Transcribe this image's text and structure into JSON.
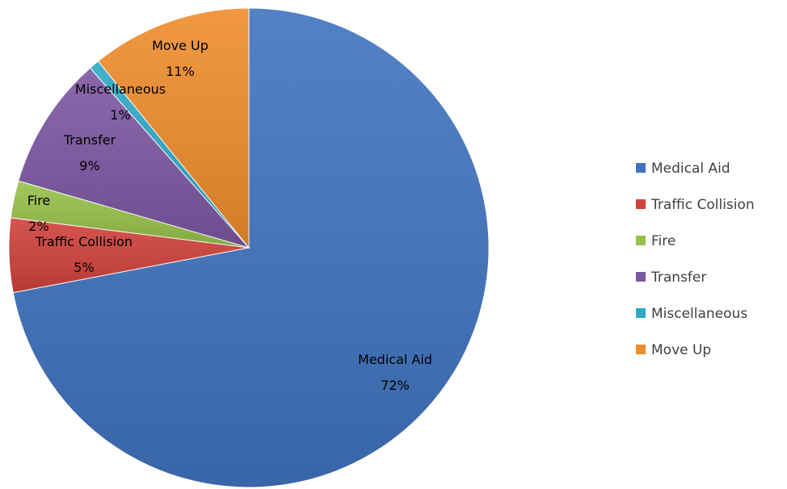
{
  "chart_data": {
    "type": "pie",
    "title": "",
    "legend_position": "right",
    "start_angle_note": "clockwise from top",
    "slices": [
      {
        "label": "Medical Aid",
        "value": 72,
        "pct_label": "72%",
        "color": "#3f73bf"
      },
      {
        "label": "Traffic Collision",
        "value": 5,
        "pct_label": "5%",
        "color": "#d0413c"
      },
      {
        "label": "Fire",
        "value": 2.5,
        "pct_label": "2%",
        "color": "#97c04a"
      },
      {
        "label": "Transfer",
        "value": 9,
        "pct_label": "9%",
        "color": "#7c57a2"
      },
      {
        "label": "Miscellaneous",
        "value": 0.7,
        "pct_label": "1%",
        "color": "#2fa8c7"
      },
      {
        "label": "Move Up",
        "value": 10.8,
        "pct_label": "11%",
        "color": "#ef8c2c"
      }
    ]
  }
}
